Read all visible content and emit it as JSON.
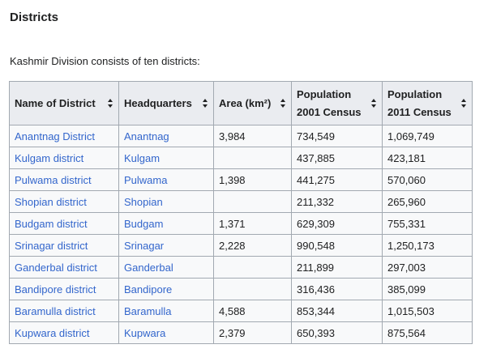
{
  "section": {
    "title": "Districts",
    "intro": "Kashmir Division consists of ten districts:"
  },
  "table": {
    "headers": [
      {
        "label": "Name of District"
      },
      {
        "label": "Headquarters"
      },
      {
        "label": "Area (km²)"
      },
      {
        "label": "Population",
        "sub": "2001 Census"
      },
      {
        "label": "Population",
        "sub": "2011 Census"
      }
    ],
    "rows": [
      {
        "district": "Anantnag District",
        "hq": "Anantnag",
        "area": "3,984",
        "pop2001": "734,549",
        "pop2011": "1,069,749"
      },
      {
        "district": "Kulgam district",
        "hq": "Kulgam",
        "area": "",
        "pop2001": "437,885",
        "pop2011": "423,181"
      },
      {
        "district": "Pulwama district",
        "hq": "Pulwama",
        "area": "1,398",
        "pop2001": "441,275",
        "pop2011": "570,060"
      },
      {
        "district": "Shopian district",
        "hq": "Shopian",
        "area": "",
        "pop2001": "211,332",
        "pop2011": "265,960"
      },
      {
        "district": "Budgam district",
        "hq": "Budgam",
        "area": "1,371",
        "pop2001": "629,309",
        "pop2011": "755,331"
      },
      {
        "district": "Srinagar district",
        "hq": "Srinagar",
        "area": "2,228",
        "pop2001": "990,548",
        "pop2011": "1,250,173"
      },
      {
        "district": "Ganderbal district",
        "hq": "Ganderbal",
        "area": "",
        "pop2001": "211,899",
        "pop2011": "297,003"
      },
      {
        "district": "Bandipore district",
        "hq": "Bandipore",
        "area": "",
        "pop2001": "316,436",
        "pop2011": "385,099"
      },
      {
        "district": "Baramulla district",
        "hq": "Baramulla",
        "area": "4,588",
        "pop2001": "853,344",
        "pop2011": "1,015,503"
      },
      {
        "district": "Kupwara district",
        "hq": "Kupwara",
        "area": "2,379",
        "pop2001": "650,393",
        "pop2011": "875,564"
      }
    ]
  },
  "colors": {
    "link": "#3366cc",
    "text": "#202122",
    "header_bg": "#eaecf0",
    "cell_bg": "#f8f9fa",
    "border": "#a2a9b1"
  },
  "icons": {
    "sort": "sort-icon"
  }
}
